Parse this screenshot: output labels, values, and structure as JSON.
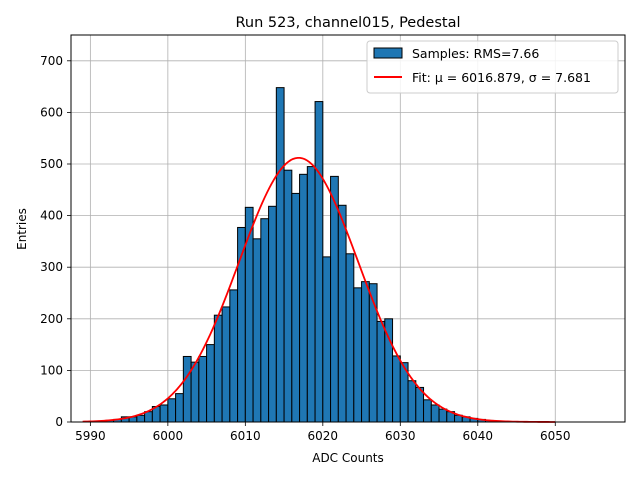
{
  "chart_data": {
    "type": "bar",
    "title": "Run 523, channel015, Pedestal",
    "xlabel": "ADC Counts",
    "ylabel": "Entries",
    "xlim": [
      5987.5,
      6059
    ],
    "ylim": [
      0,
      750
    ],
    "xticks": [
      5990,
      6000,
      6010,
      6020,
      6030,
      6040,
      6050
    ],
    "yticks": [
      0,
      100,
      200,
      300,
      400,
      500,
      600,
      700
    ],
    "grid": true,
    "legend_position": "top-right",
    "colors": {
      "bars": "#1f77b4",
      "bar_edge": "#000000",
      "fit": "#ff0000",
      "grid": "#b0b0b0"
    },
    "series": [
      {
        "name": "Samples: RMS=7.66",
        "kind": "histogram",
        "bin_width": 1,
        "bin_start": [
          5991,
          5992,
          5993,
          5994,
          5995,
          5996,
          5997,
          5998,
          5999,
          6000,
          6001,
          6002,
          6003,
          6004,
          6005,
          6006,
          6007,
          6008,
          6009,
          6010,
          6011,
          6012,
          6013,
          6014,
          6015,
          6016,
          6017,
          6018,
          6019,
          6020,
          6021,
          6022,
          6023,
          6024,
          6025,
          6026,
          6027,
          6028,
          6029,
          6030,
          6031,
          6032,
          6033,
          6034,
          6035,
          6036,
          6037,
          6038,
          6039,
          6040,
          6041,
          6042,
          6043
        ],
        "values": [
          2,
          3,
          5,
          10,
          10,
          13,
          20,
          30,
          33,
          45,
          55,
          127,
          116,
          127,
          150,
          207,
          223,
          256,
          377,
          416,
          355,
          394,
          418,
          648,
          488,
          443,
          480,
          495,
          621,
          320,
          476,
          420,
          326,
          260,
          272,
          268,
          195,
          200,
          128,
          115,
          80,
          67,
          43,
          33,
          25,
          20,
          13,
          10,
          7,
          5,
          3,
          2,
          1
        ]
      },
      {
        "name": "Fit: μ = 6016.879, σ = 7.681",
        "kind": "gaussian_fit",
        "mu": 6016.879,
        "sigma": 7.681,
        "amplitude": 512,
        "x_range": [
          5989,
          6050
        ]
      }
    ]
  }
}
